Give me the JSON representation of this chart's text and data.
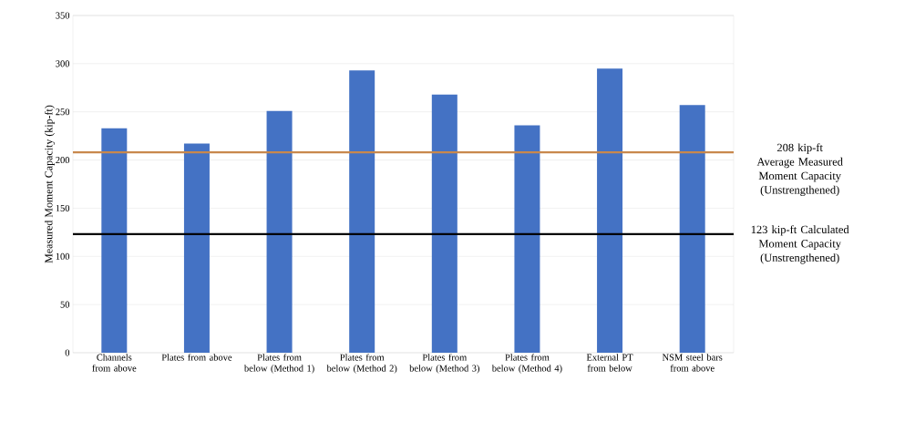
{
  "chart_data": {
    "type": "bar",
    "ylabel": "Measured Moment Capacity (kip-ft)",
    "categories": [
      "Channels from above",
      "Plates from above",
      "Plates from below (Method 1)",
      "Plates from below (Method 2)",
      "Plates from below (Method 3)",
      "Plates from below (Method 4)",
      "External PT from below",
      "NSM steel bars from above"
    ],
    "values": [
      233,
      217,
      251,
      293,
      268,
      236,
      295,
      257
    ],
    "color": "#4472c4",
    "ylim": [
      0,
      350
    ],
    "yticks": [
      0,
      50,
      100,
      150,
      200,
      250,
      300,
      350
    ],
    "grid": "y",
    "ref_lines": [
      {
        "axis": "y",
        "value": 208,
        "label": "208 kip-ft Average Measured Moment Capacity (Unstrengthened)",
        "color": "#c8884c"
      },
      {
        "axis": "y",
        "value": 123,
        "label": "123 kip-ft Calculated Moment Capacity (Unstrengthened)",
        "color": "#000000"
      }
    ]
  }
}
